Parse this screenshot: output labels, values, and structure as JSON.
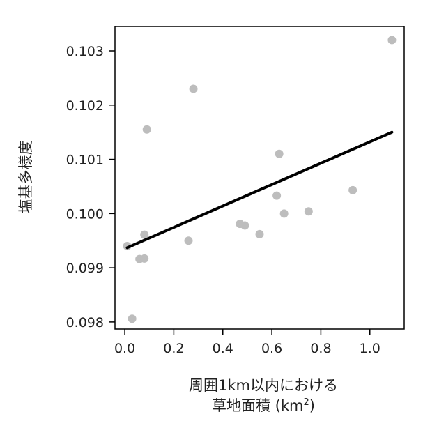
{
  "chart_data": {
    "type": "scatter",
    "title": "",
    "xlabel_line1": "周囲1km以内における",
    "xlabel_line2": "草地面積 (km",
    "xlabel_sup": "2",
    "xlabel_close": ")",
    "ylabel": "塩基多様度",
    "xlim": [
      -0.04,
      1.14
    ],
    "ylim": [
      0.09787,
      0.10345
    ],
    "xticks": [
      0.0,
      0.2,
      0.4,
      0.6,
      0.8,
      1.0
    ],
    "xtick_labels": [
      "0.0",
      "0.2",
      "0.4",
      "0.6",
      "0.8",
      "1.0"
    ],
    "yticks": [
      0.098,
      0.099,
      0.1,
      0.101,
      0.102,
      0.103
    ],
    "ytick_labels": [
      "0.098",
      "0.099",
      "0.100",
      "0.101",
      "0.102",
      "0.103"
    ],
    "grid": false,
    "points": [
      {
        "x": 0.01,
        "y": 0.0994
      },
      {
        "x": 0.03,
        "y": 0.09806
      },
      {
        "x": 0.06,
        "y": 0.09916
      },
      {
        "x": 0.08,
        "y": 0.09917
      },
      {
        "x": 0.08,
        "y": 0.09961
      },
      {
        "x": 0.09,
        "y": 0.10155
      },
      {
        "x": 0.26,
        "y": 0.0995
      },
      {
        "x": 0.28,
        "y": 0.1023
      },
      {
        "x": 0.47,
        "y": 0.09981
      },
      {
        "x": 0.49,
        "y": 0.09978
      },
      {
        "x": 0.55,
        "y": 0.09962
      },
      {
        "x": 0.62,
        "y": 0.10033
      },
      {
        "x": 0.63,
        "y": 0.1011
      },
      {
        "x": 0.65,
        "y": 0.1
      },
      {
        "x": 0.75,
        "y": 0.10004
      },
      {
        "x": 0.93,
        "y": 0.10043
      },
      {
        "x": 1.09,
        "y": 0.1032
      }
    ],
    "fit_line": {
      "x": [
        0.01,
        1.09
      ],
      "y": [
        0.09937,
        0.1015
      ]
    },
    "point_color": "#bdbdbd",
    "line_color": "#000000"
  }
}
